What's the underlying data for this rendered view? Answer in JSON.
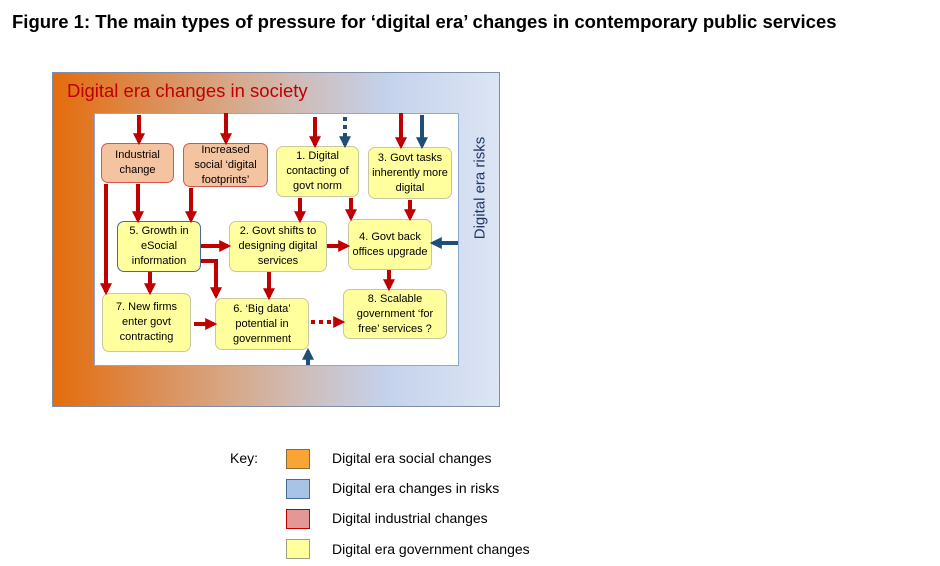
{
  "title": "Figure 1: The main types of pressure for ‘digital era’ changes in contemporary public services",
  "outer_label": "Digital era changes in society",
  "side_label": "Digital era risks",
  "boxes": {
    "industrial": "Industrial change",
    "footprints": "Increased social ‘digital footprints’",
    "b1": "1. Digital contacting of govt norm",
    "b3": "3. Govt tasks inherently more digital",
    "b5": "5. Growth in eSocial information",
    "b2": "2. Govt shifts to designing digital services",
    "b4": "4. Govt back offices upgrade",
    "b7": "7. New firms enter govt contracting",
    "b6": "6. ‘Big data’ potential in government",
    "b8": "8. Scalable government ‘for free’ services ?"
  },
  "colors": {
    "red_arrow": "#c00000",
    "blue_arrow": "#1f4e79"
  },
  "key": {
    "label": "Key:",
    "items": [
      {
        "label": "Digital era social changes",
        "color": "#f9a534"
      },
      {
        "label": "Digital era changes in risks",
        "color": "#a7c3e6"
      },
      {
        "label": "Digital industrial changes",
        "color": "#e39796"
      },
      {
        "label": "Digital era government changes",
        "color": "#ffff9e"
      }
    ]
  }
}
